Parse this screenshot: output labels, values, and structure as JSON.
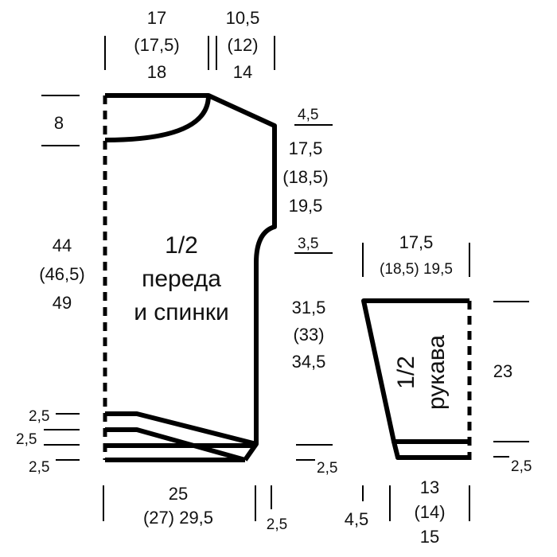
{
  "body": {
    "title_1": "1/2",
    "title_2": "переда",
    "title_3": "и спинки",
    "top_width": [
      "17",
      "(17,5)",
      "18"
    ],
    "shoulder_width": [
      "10,5",
      "(12)",
      "14"
    ],
    "neck_depth": "8",
    "shoulder_drop": "4,5",
    "armhole": [
      "17,5",
      "(18,5)",
      "19,5"
    ],
    "armhole_curve": "3,5",
    "total_length": [
      "44",
      "(46,5)",
      "49"
    ],
    "side_length": [
      "31,5",
      "(33)",
      "34,5"
    ],
    "hem_left": [
      "2,5",
      "2,5",
      "2,5"
    ],
    "hem_right": "2,5",
    "bottom_width": [
      "25",
      "(27)  29,5"
    ],
    "bottom_offset": "2,5"
  },
  "sleeve": {
    "title_1": "1/2",
    "title_2": "рукава",
    "top_width": [
      "17,5",
      "(18,5)  19,5"
    ],
    "height": "23",
    "cuff": "2,5",
    "bottom_width": [
      "13",
      "(14)",
      "15"
    ],
    "bottom_offset": "4,5"
  }
}
